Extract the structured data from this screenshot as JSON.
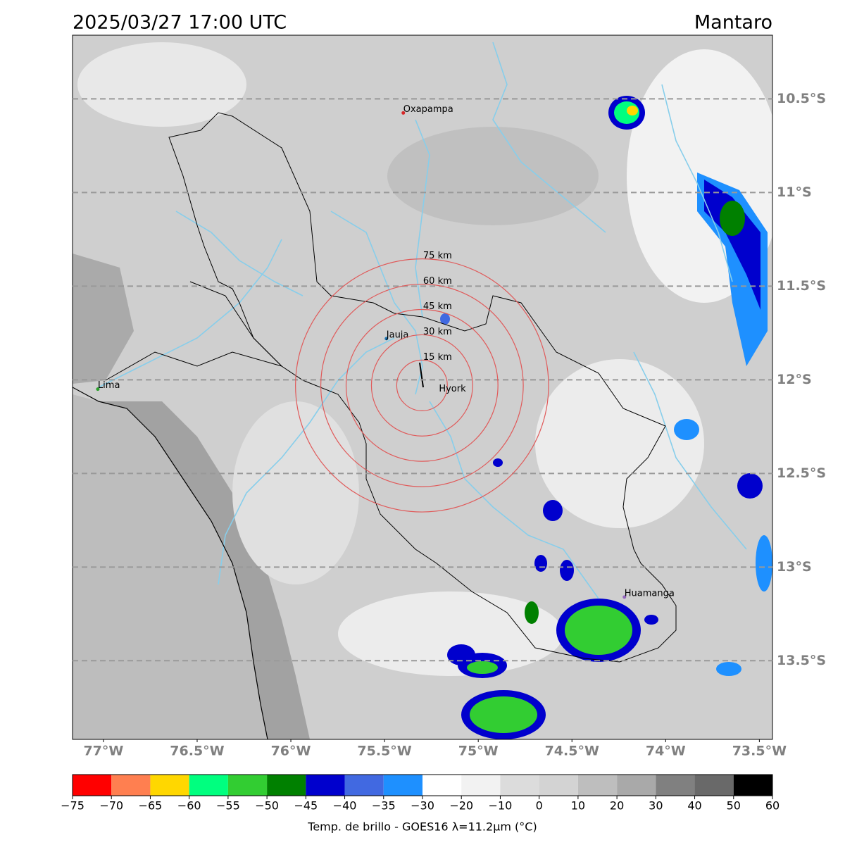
{
  "title": "2025/03/27 17:00 UTC",
  "region": "Mantaro",
  "map": {
    "xlim": [
      -77.165,
      -73.43
    ],
    "ylim": [
      -13.92,
      -10.16
    ],
    "xticks": [
      {
        "value": -77,
        "label": "77°W"
      },
      {
        "value": -76.5,
        "label": "76.5°W"
      },
      {
        "value": -76,
        "label": "76°W"
      },
      {
        "value": -75.5,
        "label": "75.5°W"
      },
      {
        "value": -75,
        "label": "75°W"
      },
      {
        "value": -74.5,
        "label": "74.5°W"
      },
      {
        "value": -74,
        "label": "74°W"
      },
      {
        "value": -73.5,
        "label": "73.5°W"
      }
    ],
    "yticks": [
      {
        "value": -10.5,
        "label": "10.5°S"
      },
      {
        "value": -11,
        "label": "11°S"
      },
      {
        "value": -11.5,
        "label": "11.5°S"
      },
      {
        "value": -12,
        "label": "12°S"
      },
      {
        "value": -12.5,
        "label": "12.5°S"
      },
      {
        "value": -13,
        "label": "13°S"
      },
      {
        "value": -13.5,
        "label": "13.5°S"
      }
    ],
    "grid": true,
    "places": [
      {
        "name": "Oxapampa",
        "lon": -75.4,
        "lat": -10.575,
        "color": "#d62728"
      },
      {
        "name": "Jauja",
        "lon": -75.49,
        "lat": -11.78,
        "color": "#1f77b4"
      },
      {
        "name": "Lima",
        "lon": -77.03,
        "lat": -12.05,
        "color": "#2ca02c"
      },
      {
        "name": "Huamanga",
        "lon": -74.22,
        "lat": -13.16,
        "color": "#9467bd"
      }
    ],
    "center": {
      "name": "Hyork",
      "lon": -75.3,
      "lat": -12.03
    },
    "rings": [
      {
        "value": 15,
        "label": "15 km"
      },
      {
        "value": 30,
        "label": "30 km"
      },
      {
        "value": 45,
        "label": "45 km"
      },
      {
        "value": 60,
        "label": "60 km"
      },
      {
        "value": 75,
        "label": "75 km"
      }
    ],
    "ring_color": "#e05a5a"
  },
  "colorbar": {
    "boundaries": [
      {
        "value": -75,
        "label": "−75"
      },
      {
        "value": -70,
        "label": "−70"
      },
      {
        "value": -65,
        "label": "−65"
      },
      {
        "value": -60,
        "label": "−60"
      },
      {
        "value": -55,
        "label": "−55"
      },
      {
        "value": -50,
        "label": "−50"
      },
      {
        "value": -45,
        "label": "−45"
      },
      {
        "value": -40,
        "label": "−40"
      },
      {
        "value": -35,
        "label": "−35"
      },
      {
        "value": -30,
        "label": "−30"
      },
      {
        "value": -20,
        "label": "−20"
      },
      {
        "value": -10,
        "label": "−10"
      },
      0,
      10,
      20,
      30,
      40,
      50,
      60
    ],
    "colors": [
      "#ff0000",
      "#ff7f50",
      "#ffd700",
      "#00ff7f",
      "#32cd32",
      "#008000",
      "#0000cd",
      "#4169e1",
      "#1e90ff",
      "#ffffff",
      "#f2f2f2",
      "#dcdcdc",
      "#d3d3d3",
      "#bebebe",
      "#a9a9a9",
      "#808080",
      "#696969",
      "#000000"
    ],
    "label": "Temp. de brillo - GOES16 λ=11.2μm (°C)"
  }
}
